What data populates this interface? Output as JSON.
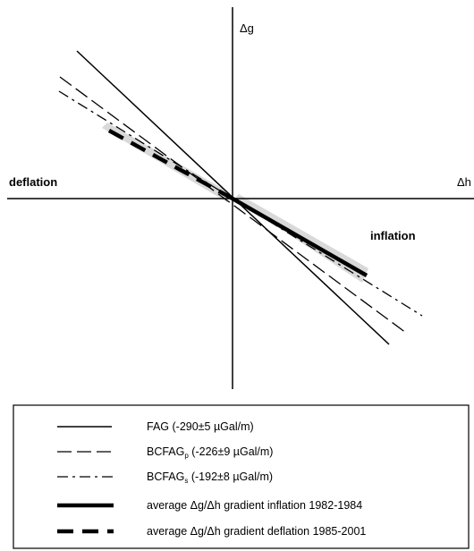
{
  "axes": {
    "y_label": "Δg",
    "x_label": "Δh",
    "left_label": "deflation",
    "right_label": "inflation"
  },
  "legend": [
    {
      "name_main": "FAG",
      "name_sub": "",
      "value": " (-290±5 µGal/m)",
      "style": "solid",
      "color": "#000000"
    },
    {
      "name_main": "BCFAG",
      "name_sub": "p",
      "value": " (-226±9 µGal/m)",
      "style": "dashed",
      "color": "#000000"
    },
    {
      "name_main": "BCFAG",
      "name_sub": "s",
      "value": " (-192±8 µGal/m)",
      "style": "dashdot",
      "color": "#000000"
    },
    {
      "name_main": "average Δg/Δh gradient inflation 1982-1984",
      "name_sub": "",
      "value": "",
      "style": "thick-solid",
      "color": "#000000"
    },
    {
      "name_main": "average Δg/Δh gradient deflation 1985-2001",
      "name_sub": "",
      "value": "",
      "style": "thick-dashed",
      "color": "#000000"
    }
  ],
  "colors": {
    "line": "#000000",
    "shade": "#d9d9d9",
    "background": "#ffffff"
  }
}
